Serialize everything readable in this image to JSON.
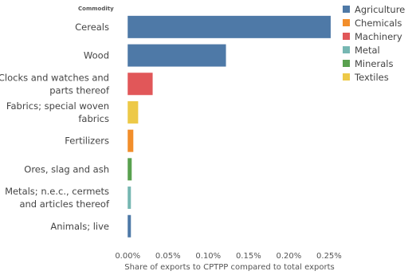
{
  "chart_data": {
    "type": "bar",
    "orientation": "horizontal",
    "row_header": "Commodity",
    "xlabel": "Share of exports to CPTPP compared to total exports",
    "xlim": [
      -0.0002,
      0.00257
    ],
    "xticks": [
      0,
      0.0005,
      0.001,
      0.0015,
      0.002,
      0.0025
    ],
    "xtick_labels": [
      "0.00%",
      "0.05%",
      "0.10%",
      "0.15%",
      "0.20%",
      "0.25%"
    ],
    "grid": false,
    "legend_position": "top-right",
    "categories": [
      [
        "Cereals"
      ],
      [
        "Wood"
      ],
      [
        "Clocks and watches and",
        "parts thereof"
      ],
      [
        "Fabrics; special woven",
        "fabrics"
      ],
      [
        "Fertilizers"
      ],
      [
        "Ores, slag and ash"
      ],
      [
        "Metals; n.e.c., cermets",
        "and articles thereof"
      ],
      [
        "Animals; live"
      ]
    ],
    "values": [
      0.00252,
      0.00122,
      0.00031,
      0.00013,
      7e-05,
      5e-05,
      4e-05,
      4e-05
    ],
    "groups": [
      "Agriculture",
      "Agriculture",
      "Machinery",
      "Textiles",
      "Chemicals",
      "Minerals",
      "Metal",
      "Agriculture"
    ],
    "legend": [
      {
        "name": "Agriculture",
        "color": "#4e79a7"
      },
      {
        "name": "Chemicals",
        "color": "#f28e2b"
      },
      {
        "name": "Machinery",
        "color": "#e15759"
      },
      {
        "name": "Metal",
        "color": "#76b7b2"
      },
      {
        "name": "Minerals",
        "color": "#59a14f"
      },
      {
        "name": "Textiles",
        "color": "#edc948"
      }
    ]
  }
}
